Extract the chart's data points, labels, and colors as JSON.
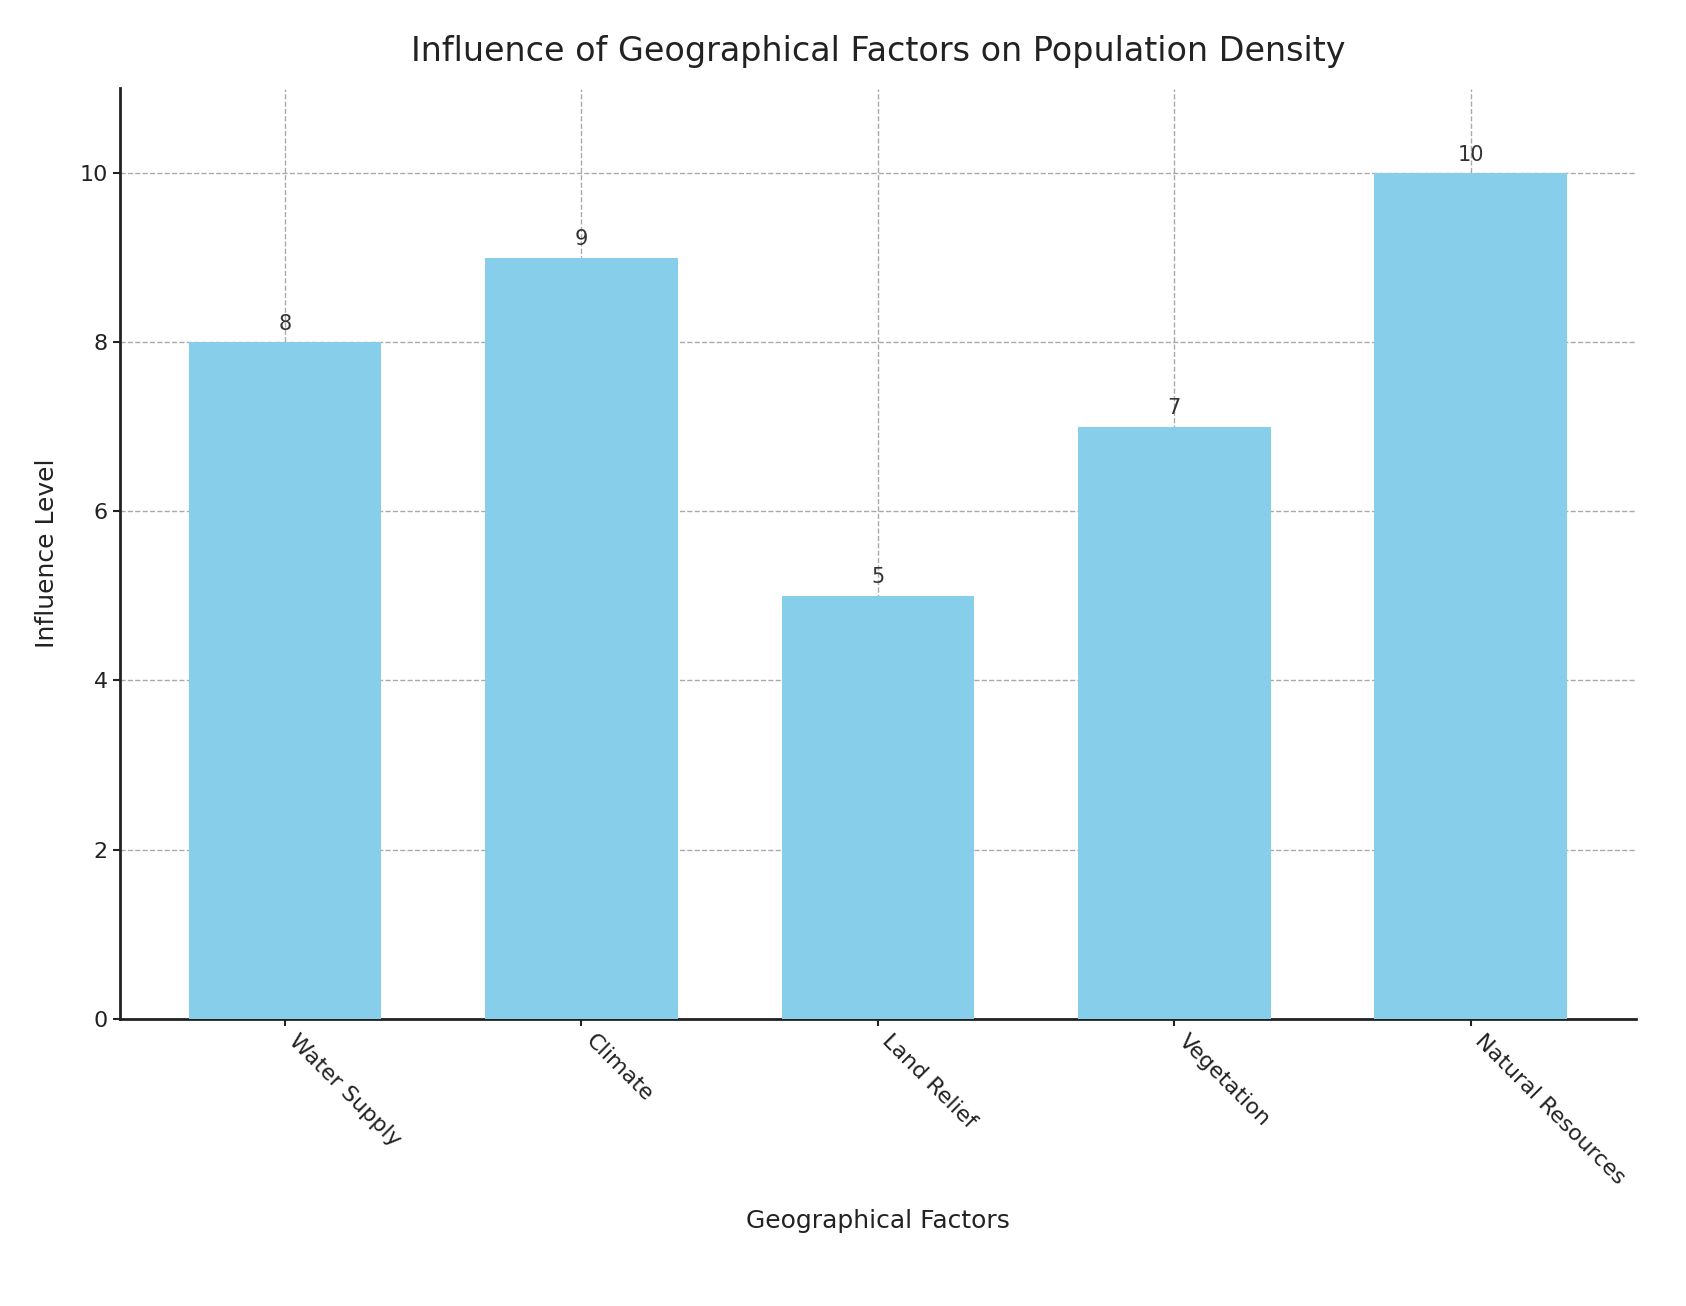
{
  "categories": [
    "Water Supply",
    "Climate",
    "Land Relief",
    "Vegetation",
    "Natural Resources"
  ],
  "values": [
    8,
    9,
    5,
    7,
    10
  ],
  "bar_color": "#87CEEB",
  "title": "Influence of Geographical Factors on Population Density",
  "xlabel": "Geographical Factors",
  "ylabel": "Influence Level",
  "ylim": [
    0,
    11
  ],
  "yticks": [
    0,
    2,
    4,
    6,
    8,
    10
  ],
  "title_fontsize": 24,
  "label_fontsize": 18,
  "tick_fontsize": 16,
  "annotation_fontsize": 15,
  "background_color": "#ffffff",
  "grid_color": "#aaaaaa",
  "bar_width": 0.65,
  "xtick_rotation": -45,
  "spine_linewidth": 2.0
}
